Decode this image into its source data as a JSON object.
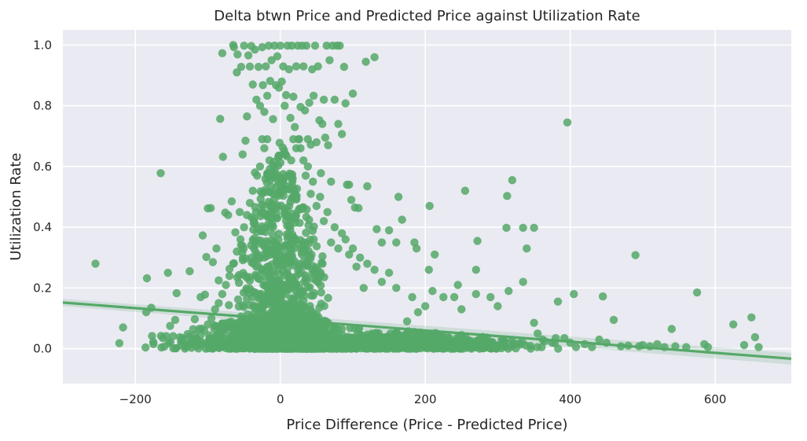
{
  "chart_data": {
    "type": "scatter",
    "title": "Delta btwn Price and Predicted Price against Utilization Rate",
    "xlabel": "Price Difference (Price - Predicted Price)",
    "ylabel": "Utilization Rate",
    "xlim": [
      -300,
      705
    ],
    "ylim": [
      -0.115,
      1.05
    ],
    "xticks": [
      -200,
      0,
      200,
      400,
      600
    ],
    "xtick_labels": [
      "−200",
      "0",
      "200",
      "400",
      "600"
    ],
    "yticks": [
      0.0,
      0.2,
      0.4,
      0.6,
      0.8,
      1.0
    ],
    "ytick_labels": [
      "0.0",
      "0.2",
      "0.4",
      "0.6",
      "0.8",
      "1.0"
    ],
    "grid": true,
    "style": "seaborn-darkgrid",
    "colors": {
      "points": "#55a868",
      "background": "#eaeaf2",
      "grid": "#ffffff",
      "ci_band": "#55a868"
    },
    "regression_line": {
      "x": [
        -300,
        705
      ],
      "y": [
        0.152,
        -0.033
      ],
      "ci_halfwidth_edges": 0.012
    },
    "points": [
      [
        -255,
        0.28
      ],
      [
        -222,
        0.018
      ],
      [
        -217,
        0.07
      ],
      [
        -186,
        0.004
      ],
      [
        -185,
        0.12
      ],
      [
        -184,
        0.232
      ],
      [
        -178,
        0.135
      ],
      [
        -177,
        0.042
      ],
      [
        -175,
        0.015
      ],
      [
        -165,
        0.578
      ],
      [
        -164,
        0.004
      ],
      [
        -162,
        0.035
      ],
      [
        -155,
        0.25
      ],
      [
        -152,
        0.075
      ],
      [
        -145,
        0.095
      ],
      [
        -143,
        0.183
      ],
      [
        -135,
        0.035
      ],
      [
        -125,
        0.255
      ],
      [
        -118,
        0.097
      ],
      [
        -110,
        0.17
      ],
      [
        -107,
        0.373
      ],
      [
        -104,
        0.178
      ],
      [
        -102,
        0.302
      ],
      [
        -100,
        0.462
      ],
      [
        -96,
        0.463
      ],
      [
        -93,
        0.285
      ],
      [
        -88,
        0.33
      ],
      [
        -85,
        0.225
      ],
      [
        -83,
        0.757
      ],
      [
        -80,
        0.973
      ],
      [
        -79,
        0.632
      ],
      [
        -76,
        0.448
      ],
      [
        -72,
        0.44
      ],
      [
        -70,
        0.263
      ],
      [
        -67,
        0.485
      ],
      [
        -65,
        1.0
      ],
      [
        -64,
        0.993
      ],
      [
        -62,
        0.383
      ],
      [
        -60,
        0.91
      ],
      [
        -59,
        0.969
      ],
      [
        -56,
        0.45
      ],
      [
        -54,
        0.928
      ],
      [
        -52,
        0.64
      ],
      [
        -50,
        0.998
      ],
      [
        -48,
        0.685
      ],
      [
        -46,
        0.765
      ],
      [
        -44,
        0.966
      ],
      [
        -42,
        0.929
      ],
      [
        -40,
        0.997
      ],
      [
        -38,
        0.87
      ],
      [
        -35,
        0.985
      ],
      [
        -33,
        0.82
      ],
      [
        -30,
        0.928
      ],
      [
        -28,
        0.8
      ],
      [
        -25,
        0.993
      ],
      [
        -24,
        0.868
      ],
      [
        -22,
        0.78
      ],
      [
        -20,
        0.93
      ],
      [
        -18,
        0.833
      ],
      [
        -16,
        0.998
      ],
      [
        -14,
        0.882
      ],
      [
        -12,
        0.95
      ],
      [
        -10,
        0.756
      ],
      [
        -8,
        0.998
      ],
      [
        -6,
        0.868
      ],
      [
        -4,
        0.963
      ],
      [
        -2,
        0.86
      ],
      [
        0,
        0.998
      ],
      [
        2,
        0.88
      ],
      [
        4,
        0.93
      ],
      [
        6,
        0.8
      ],
      [
        8,
        0.835
      ],
      [
        10,
        0.998
      ],
      [
        12,
        0.92
      ],
      [
        14,
        0.76
      ],
      [
        16,
        0.998
      ],
      [
        18,
        0.83
      ],
      [
        20,
        0.73
      ],
      [
        22,
        0.93
      ],
      [
        24,
        0.998
      ],
      [
        26,
        0.69
      ],
      [
        28,
        0.796
      ],
      [
        30,
        0.998
      ],
      [
        32,
        0.93
      ],
      [
        34,
        0.785
      ],
      [
        36,
        0.998
      ],
      [
        38,
        0.69
      ],
      [
        40,
        0.81
      ],
      [
        42,
        0.672
      ],
      [
        44,
        0.92
      ],
      [
        46,
        0.833
      ],
      [
        48,
        0.998
      ],
      [
        50,
        0.68
      ],
      [
        52,
        0.93
      ],
      [
        54,
        0.752
      ],
      [
        56,
        0.578
      ],
      [
        58,
        0.74
      ],
      [
        60,
        0.82
      ],
      [
        62,
        0.695
      ],
      [
        64,
        0.998
      ],
      [
        66,
        0.67
      ],
      [
        68,
        0.95
      ],
      [
        70,
        0.55
      ],
      [
        72,
        0.998
      ],
      [
        75,
        0.82
      ],
      [
        78,
        0.998
      ],
      [
        80,
        0.74
      ],
      [
        82,
        0.998
      ],
      [
        85,
        0.707
      ],
      [
        88,
        0.928
      ],
      [
        90,
        0.808
      ],
      [
        92,
        0.54
      ],
      [
        95,
        0.54
      ],
      [
        98,
        0.49
      ],
      [
        100,
        0.84
      ],
      [
        103,
        0.465
      ],
      [
        108,
        0.463
      ],
      [
        118,
        0.945
      ],
      [
        120,
        0.535
      ],
      [
        130,
        0.96
      ],
      [
        133,
        0.394
      ],
      [
        140,
        0.35
      ],
      [
        150,
        0.39
      ],
      [
        160,
        0.35
      ],
      [
        163,
        0.5
      ],
      [
        168,
        0.425
      ],
      [
        185,
        0.35
      ],
      [
        188,
        0.33
      ],
      [
        206,
        0.47
      ],
      [
        205,
        0.26
      ],
      [
        213,
        0.31
      ],
      [
        245,
        0.21
      ],
      [
        255,
        0.52
      ],
      [
        270,
        0.26
      ],
      [
        272,
        0.355
      ],
      [
        312,
        0.398
      ],
      [
        313,
        0.503
      ],
      [
        320,
        0.555
      ],
      [
        335,
        0.398
      ],
      [
        340,
        0.33
      ],
      [
        350,
        0.398
      ],
      [
        335,
        0.22
      ],
      [
        315,
        0.19
      ],
      [
        300,
        0.14
      ],
      [
        290,
        0.17
      ],
      [
        270,
        0.18
      ],
      [
        250,
        0.13
      ],
      [
        240,
        0.17
      ],
      [
        225,
        0.17
      ],
      [
        210,
        0.19
      ],
      [
        200,
        0.14
      ],
      [
        190,
        0.12
      ],
      [
        182,
        0.17
      ],
      [
        175,
        0.09
      ],
      [
        160,
        0.2
      ],
      [
        150,
        0.25
      ],
      [
        140,
        0.22
      ],
      [
        130,
        0.26
      ],
      [
        120,
        0.28
      ],
      [
        115,
        0.2
      ],
      [
        110,
        0.3
      ],
      [
        105,
        0.27
      ],
      [
        100,
        0.33
      ],
      [
        95,
        0.31
      ],
      [
        90,
        0.36
      ],
      [
        85,
        0.38
      ],
      [
        80,
        0.33
      ],
      [
        75,
        0.4
      ],
      [
        70,
        0.35
      ],
      [
        65,
        0.45
      ],
      [
        60,
        0.42
      ],
      [
        55,
        0.5
      ],
      [
        50,
        0.47
      ],
      [
        45,
        0.55
      ],
      [
        42,
        0.51
      ],
      [
        38,
        0.6
      ],
      [
        35,
        0.57
      ],
      [
        32,
        0.62
      ],
      [
        28,
        0.66
      ],
      [
        25,
        0.69
      ],
      [
        22,
        0.66
      ],
      [
        18,
        0.69
      ],
      [
        15,
        0.62
      ],
      [
        -15,
        0.62
      ],
      [
        -18,
        0.69
      ],
      [
        -22,
        0.66
      ],
      [
        -25,
        0.69
      ],
      [
        -28,
        0.6
      ],
      [
        -32,
        0.57
      ],
      [
        -35,
        0.58
      ],
      [
        -38,
        0.52
      ],
      [
        -42,
        0.48
      ],
      [
        -46,
        0.44
      ],
      [
        -50,
        0.4
      ],
      [
        -55,
        0.36
      ],
      [
        -60,
        0.32
      ],
      [
        -65,
        0.28
      ],
      [
        -70,
        0.24
      ],
      [
        -75,
        0.21
      ],
      [
        -80,
        0.18
      ],
      [
        -85,
        0.15
      ],
      [
        -90,
        0.13
      ],
      [
        -95,
        0.1
      ],
      [
        -100,
        0.08
      ],
      [
        -105,
        0.06
      ],
      [
        -110,
        0.045
      ],
      [
        -115,
        0.03
      ],
      [
        -120,
        0.02
      ],
      [
        -125,
        0.012
      ],
      [
        -130,
        0.006
      ],
      [
        350,
        0.085
      ],
      [
        355,
        0.05
      ],
      [
        362,
        0.03
      ],
      [
        375,
        0.02
      ],
      [
        380,
        0.035
      ],
      [
        383,
        0.155
      ],
      [
        392,
        0.035
      ],
      [
        396,
        0.745
      ],
      [
        400,
        0.02
      ],
      [
        405,
        0.18
      ],
      [
        420,
        0.015
      ],
      [
        430,
        0.005
      ],
      [
        440,
        0.03
      ],
      [
        445,
        0.172
      ],
      [
        450,
        0.02
      ],
      [
        460,
        0.095
      ],
      [
        470,
        0.008
      ],
      [
        480,
        0.01
      ],
      [
        490,
        0.308
      ],
      [
        495,
        0.008
      ],
      [
        500,
        0.012
      ],
      [
        510,
        0.008
      ],
      [
        520,
        0.015
      ],
      [
        530,
        0.005
      ],
      [
        540,
        0.065
      ],
      [
        545,
        0.008
      ],
      [
        560,
        0.005
      ],
      [
        575,
        0.185
      ],
      [
        585,
        0.015
      ],
      [
        590,
        0.005
      ],
      [
        625,
        0.08
      ],
      [
        640,
        0.012
      ],
      [
        650,
        0.103
      ],
      [
        655,
        0.038
      ],
      [
        660,
        0.005
      ]
    ],
    "density_note": "dense cluster",
    "dense_clusters": [
      {
        "x_center": 0,
        "x_spread": 60,
        "y_min": 0.0,
        "y_max": 0.69,
        "count": 900
      },
      {
        "x_center": 0,
        "x_spread": 140,
        "y_min": 0.0,
        "y_max": 0.12,
        "count": 700
      },
      {
        "x_center": 170,
        "x_spread": 180,
        "y_min": 0.0,
        "y_max": 0.06,
        "count": 500
      }
    ]
  }
}
